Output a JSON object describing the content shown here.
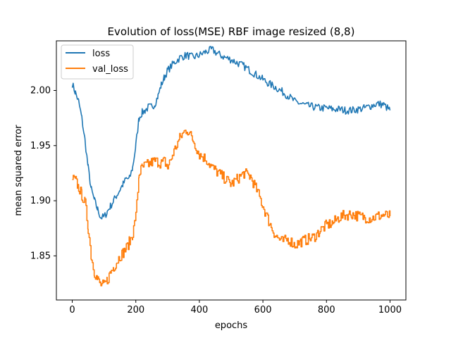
{
  "chart_data": {
    "type": "line",
    "title": "Evolution of loss(MSE) RBF image resized (8,8)",
    "xlabel": "epochs",
    "ylabel": "mean squared error",
    "xlim": [
      -50,
      1050
    ],
    "ylim": [
      1.81,
      2.045
    ],
    "xticks": [
      0,
      200,
      400,
      600,
      800,
      1000
    ],
    "yticks": [
      1.85,
      1.9,
      1.95,
      2.0
    ],
    "x_tick_labels": [
      "0",
      "200",
      "400",
      "600",
      "800",
      "1000"
    ],
    "y_tick_labels": [
      "1.85",
      "1.90",
      "1.95",
      "2.00"
    ],
    "grid": false,
    "legend_position": "upper-left",
    "series": [
      {
        "name": "loss",
        "color": "#1f77b4",
        "x": [
          0,
          10,
          20,
          30,
          40,
          50,
          60,
          70,
          80,
          90,
          100,
          110,
          120,
          130,
          140,
          150,
          160,
          170,
          180,
          190,
          200,
          210,
          220,
          230,
          240,
          250,
          260,
          270,
          280,
          290,
          300,
          320,
          340,
          360,
          380,
          400,
          420,
          440,
          460,
          480,
          500,
          520,
          540,
          560,
          580,
          600,
          620,
          640,
          660,
          680,
          700,
          720,
          740,
          760,
          780,
          800,
          820,
          840,
          860,
          880,
          900,
          920,
          940,
          960,
          980,
          1000
        ],
        "y": [
          2.006,
          1.998,
          1.99,
          1.975,
          1.955,
          1.93,
          1.91,
          1.9,
          1.892,
          1.885,
          1.885,
          1.89,
          1.895,
          1.9,
          1.905,
          1.91,
          1.915,
          1.92,
          1.92,
          1.93,
          1.95,
          1.975,
          1.98,
          1.982,
          1.985,
          1.985,
          1.988,
          1.995,
          2.005,
          2.012,
          2.018,
          2.025,
          2.03,
          2.032,
          2.03,
          2.032,
          2.035,
          2.037,
          2.033,
          2.03,
          2.028,
          2.025,
          2.022,
          2.018,
          2.014,
          2.01,
          2.006,
          2.003,
          1.999,
          1.995,
          1.99,
          1.988,
          1.986,
          1.985,
          1.984,
          1.984,
          1.983,
          1.983,
          1.982,
          1.982,
          1.983,
          1.984,
          1.986,
          1.988,
          1.987,
          1.982
        ]
      },
      {
        "name": "val_loss",
        "color": "#ff7f0e",
        "x": [
          0,
          10,
          20,
          30,
          40,
          50,
          60,
          70,
          80,
          90,
          100,
          110,
          120,
          130,
          140,
          150,
          160,
          170,
          180,
          190,
          200,
          210,
          220,
          230,
          240,
          250,
          260,
          270,
          280,
          290,
          300,
          320,
          340,
          360,
          380,
          400,
          420,
          440,
          460,
          480,
          500,
          520,
          540,
          560,
          580,
          600,
          620,
          640,
          660,
          680,
          700,
          720,
          740,
          760,
          780,
          800,
          820,
          840,
          860,
          880,
          900,
          920,
          940,
          960,
          980,
          1000
        ],
        "y": [
          1.92,
          1.918,
          1.912,
          1.905,
          1.898,
          1.875,
          1.848,
          1.835,
          1.828,
          1.824,
          1.823,
          1.828,
          1.835,
          1.84,
          1.845,
          1.85,
          1.853,
          1.857,
          1.863,
          1.87,
          1.886,
          1.925,
          1.93,
          1.932,
          1.933,
          1.935,
          1.936,
          1.935,
          1.934,
          1.936,
          1.93,
          1.945,
          1.958,
          1.965,
          1.955,
          1.942,
          1.938,
          1.93,
          1.925,
          1.92,
          1.915,
          1.92,
          1.925,
          1.922,
          1.91,
          1.895,
          1.88,
          1.868,
          1.863,
          1.865,
          1.86,
          1.863,
          1.865,
          1.867,
          1.873,
          1.878,
          1.88,
          1.885,
          1.887,
          1.888,
          1.886,
          1.885,
          1.884,
          1.886,
          1.887,
          1.886
        ]
      }
    ]
  }
}
